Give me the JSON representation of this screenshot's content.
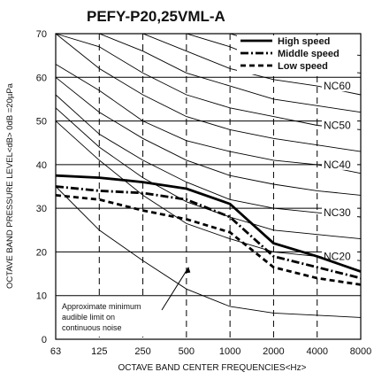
{
  "chart_data": {
    "type": "line",
    "title": "PEFY-P20,25VML-A",
    "xlabel": "OCTAVE  BAND  CENTER  FREQUENCIES<Hz>",
    "ylabel": "OCTAVE BAND PRESSURE LEVEL<dB> 0dB =20µPa",
    "categories": [
      "63",
      "125",
      "250",
      "500",
      "1000",
      "2000",
      "4000",
      "8000"
    ],
    "y_ticks": [
      "0",
      "10",
      "20",
      "30",
      "40",
      "50",
      "60",
      "70"
    ],
    "ylim": [
      0,
      70
    ],
    "grid": true,
    "legend_position": "top-right",
    "series": [
      {
        "name": "High speed",
        "line_style": "solid",
        "values": [
          37.5,
          37,
          36,
          34.5,
          31,
          22,
          19,
          15.5
        ]
      },
      {
        "name": "Middle speed",
        "line_style": "dash-dot",
        "values": [
          35,
          34,
          33.5,
          32,
          28,
          19,
          16.5,
          14
        ]
      },
      {
        "name": "Low speed",
        "line_style": "dotted",
        "values": [
          33,
          32,
          29.5,
          27.5,
          24.5,
          16.5,
          14,
          12.5
        ]
      }
    ],
    "nc_curves": [
      {
        "label": "NC60",
        "values": [
          70,
          70,
          70,
          66,
          62,
          59.5,
          58,
          56
        ]
      },
      {
        "label": "NC50",
        "values": [
          70,
          67,
          61,
          56,
          53,
          51,
          49,
          48
        ]
      },
      {
        "label": "NC40",
        "values": [
          63,
          57,
          50,
          45.5,
          43,
          41,
          40,
          38
        ]
      },
      {
        "label": "NC30",
        "values": [
          56,
          47,
          41,
          36,
          32,
          30,
          29,
          28
        ]
      },
      {
        "label": "NC20",
        "values": [
          50,
          41,
          33,
          26.5,
          23,
          20,
          19,
          18
        ]
      }
    ],
    "extra_curves": [
      {
        "values": [
          70,
          70,
          70,
          70,
          70,
          67,
          66,
          65
        ]
      },
      {
        "values": [
          70,
          70,
          70,
          70,
          67,
          63,
          62,
          61
        ]
      },
      {
        "values": [
          70,
          70,
          66,
          61,
          58,
          55,
          53.5,
          52
        ]
      },
      {
        "values": [
          70,
          62,
          56,
          51,
          48,
          46,
          44.5,
          43
        ]
      },
      {
        "values": [
          60,
          52,
          46,
          41,
          37.5,
          35.5,
          34,
          33
        ]
      },
      {
        "values": [
          53,
          44,
          37,
          31.5,
          28,
          25,
          24,
          23
        ]
      }
    ],
    "audible_limit": {
      "values": [
        35,
        25,
        18,
        11.5,
        7.5,
        6,
        5.5,
        5
      ]
    },
    "annotation": {
      "lines": [
        "Approximate minimum",
        "audible limit on",
        "continuous noise"
      ],
      "arrow_to_x_index": 3.05,
      "arrow_to_y": 16.5
    }
  }
}
